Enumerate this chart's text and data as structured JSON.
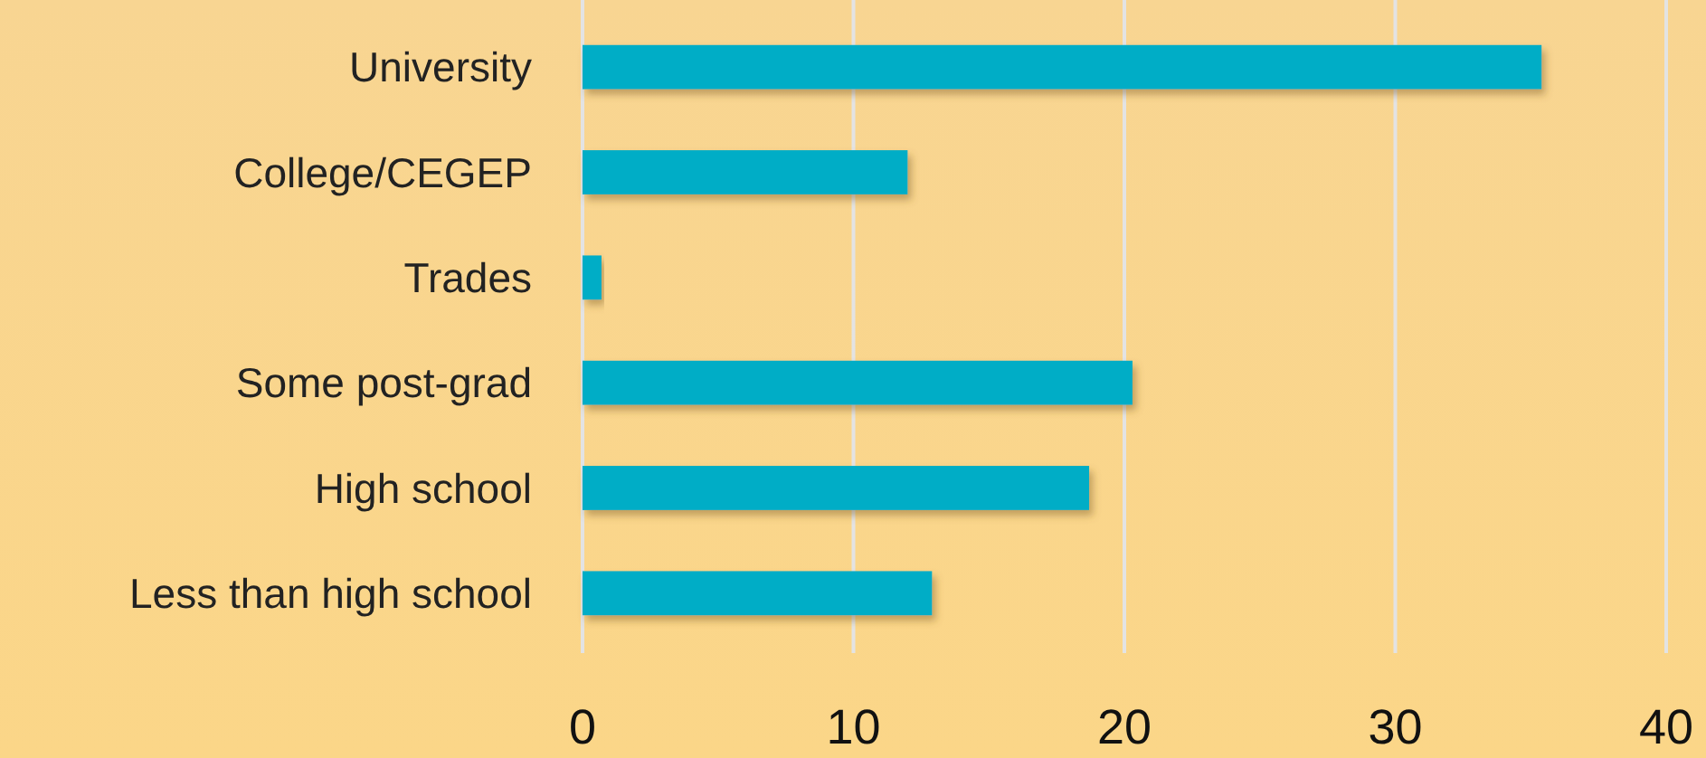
{
  "chart_data": {
    "type": "bar",
    "orientation": "horizontal",
    "categories": [
      "University",
      "College/CEGEP",
      "Trades",
      "Some post-grad",
      "High school",
      "Less than high school"
    ],
    "values": [
      35.4,
      12.0,
      0.7,
      20.3,
      18.7,
      12.9
    ],
    "color": "#05adc6",
    "xlim": [
      0,
      40
    ],
    "xticks": [
      0,
      10,
      20,
      30,
      40
    ],
    "grid": "x"
  }
}
